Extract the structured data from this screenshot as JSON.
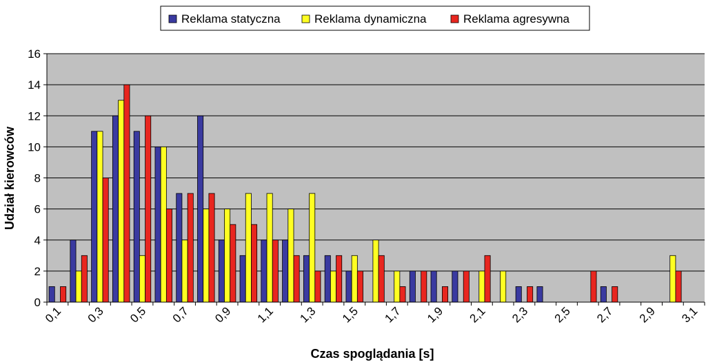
{
  "chart_data": {
    "type": "bar",
    "title": "",
    "xlabel": "Czas spoglądania [s]",
    "ylabel": "Udział kierowców",
    "ylim": [
      0,
      16
    ],
    "yticks": [
      "0",
      "2",
      "4",
      "6",
      "8",
      "10",
      "12",
      "14",
      "16"
    ],
    "categories": [
      "0,1",
      "0,2",
      "0,3",
      "0,4",
      "0,5",
      "0,6",
      "0,7",
      "0,8",
      "0,9",
      "1,0",
      "1,1",
      "1,2",
      "1,3",
      "1,4",
      "1,5",
      "1,6",
      "1,7",
      "1,8",
      "1,9",
      "2,0",
      "2,1",
      "2,2",
      "2,3",
      "2,4",
      "2,5",
      "2,6",
      "2,7",
      "2,8",
      "2,9",
      "3,0",
      "3,1"
    ],
    "xtick_labels": [
      "0,1",
      "0,3",
      "0,5",
      "0,7",
      "0,9",
      "1,1",
      "1,3",
      "1,5",
      "1,7",
      "1,9",
      "2,1",
      "2,3",
      "2,5",
      "2,7",
      "2,9",
      "3,1"
    ],
    "series": [
      {
        "name": "Reklama statyczna",
        "color": "#3a3aa0",
        "values": [
          1,
          4,
          11,
          12,
          11,
          10,
          7,
          12,
          4,
          3,
          4,
          4,
          3,
          3,
          2,
          0,
          0,
          2,
          2,
          2,
          0,
          0,
          1,
          1,
          0,
          0,
          1,
          0,
          0,
          0,
          0
        ]
      },
      {
        "name": "Reklama dynamiczna",
        "color": "#ffff22",
        "values": [
          0,
          2,
          11,
          13,
          3,
          10,
          4,
          6,
          6,
          7,
          7,
          6,
          7,
          2,
          3,
          4,
          2,
          0,
          0,
          0,
          2,
          2,
          0,
          0,
          0,
          0,
          0,
          0,
          0,
          3,
          0
        ]
      },
      {
        "name": "Reklama agresywna",
        "color": "#e8261f",
        "values": [
          1,
          3,
          8,
          14,
          12,
          6,
          7,
          7,
          5,
          5,
          4,
          3,
          2,
          3,
          2,
          3,
          1,
          2,
          1,
          2,
          3,
          0,
          1,
          0,
          0,
          2,
          1,
          0,
          0,
          2,
          0
        ]
      }
    ],
    "grid": true,
    "legend_position": "top-center",
    "plot_background": "#c0c0c0"
  }
}
